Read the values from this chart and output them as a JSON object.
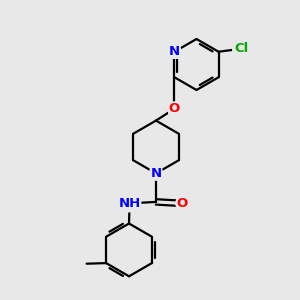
{
  "background_color": "#e8e8e8",
  "atom_colors": {
    "N": "#0000ff",
    "O": "#ff0000",
    "Cl": "#00aa00",
    "H": "#708090",
    "C": "#000000"
  },
  "lw": 1.6,
  "fs": 9.5
}
